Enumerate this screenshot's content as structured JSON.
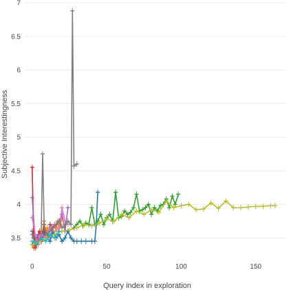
{
  "chart_data": {
    "type": "line",
    "xlabel": "Query index in exploration",
    "ylabel": "Subjective Interestingness",
    "xlim": [
      -5,
      170
    ],
    "ylim": [
      3.35,
      7.0
    ],
    "xticks": [
      "0",
      "50",
      "100",
      "150"
    ],
    "yticks": [
      "3.5",
      "4",
      "4.5",
      "5",
      "5.5",
      "6",
      "6.5",
      "7"
    ],
    "grid": true,
    "legend": "none",
    "colors": [
      "#1f77b4",
      "#ff7f0e",
      "#2ca02c",
      "#d62728",
      "#9467bd",
      "#8c564b",
      "#e377c2",
      "#7f7f7f",
      "#bcbd22",
      "#17becf"
    ],
    "series": [
      {
        "x": [
          0,
          2,
          4,
          6,
          8,
          10,
          12,
          14,
          16,
          18,
          20,
          22,
          24,
          26,
          28,
          30,
          33,
          36,
          40,
          42,
          43,
          44
        ],
        "y": [
          3.6,
          3.4,
          3.5,
          3.45,
          3.55,
          3.5,
          3.45,
          3.6,
          3.5,
          3.55,
          3.45,
          3.5,
          3.6,
          3.5,
          3.45,
          3.45,
          3.45,
          3.45,
          3.45,
          3.45,
          3.7,
          4.18
        ]
      },
      {
        "x": [
          0,
          1,
          2,
          3,
          4,
          5,
          6,
          7,
          8,
          9,
          10,
          11,
          12,
          13,
          14,
          15,
          16,
          17,
          18,
          19,
          20
        ],
        "y": [
          3.4,
          3.35,
          3.45,
          3.5,
          3.4,
          3.55,
          3.45,
          3.6,
          3.75,
          3.5,
          3.65,
          3.55,
          3.7,
          3.6,
          3.65,
          3.7,
          3.6,
          3.75,
          3.65,
          3.7,
          3.8
        ]
      },
      {
        "x": [
          28,
          30,
          32,
          34,
          36,
          38,
          40,
          42,
          44,
          46,
          48,
          50,
          52,
          54,
          56,
          58,
          60,
          62,
          64,
          66,
          68,
          70,
          72,
          74,
          76,
          78,
          80,
          82,
          84,
          86,
          88,
          90,
          92,
          94,
          96,
          98
        ],
        "y": [
          3.65,
          3.7,
          3.75,
          3.68,
          3.72,
          3.7,
          3.95,
          3.7,
          3.75,
          3.85,
          3.7,
          3.8,
          3.85,
          3.75,
          4.18,
          3.8,
          3.82,
          3.9,
          3.85,
          3.88,
          3.95,
          4.15,
          3.9,
          3.92,
          3.95,
          4.0,
          3.85,
          3.95,
          3.9,
          3.98,
          4.0,
          4.08,
          3.95,
          4.12,
          4.0,
          4.15
        ]
      },
      {
        "x": [
          0,
          1,
          2,
          3,
          4,
          5,
          6,
          7,
          8
        ],
        "y": [
          4.55,
          3.5,
          3.35,
          3.4,
          3.55,
          3.6,
          3.45,
          3.5,
          3.7
        ]
      },
      {
        "x": [
          0,
          2,
          4,
          6,
          8,
          10,
          12,
          14,
          16,
          18,
          20,
          22,
          24
        ],
        "y": [
          4.1,
          3.45,
          3.55,
          3.5,
          3.6,
          3.55,
          3.5,
          3.65,
          3.7,
          3.75,
          3.85,
          3.6,
          3.95
        ]
      },
      {
        "x": [
          0,
          2,
          4,
          6,
          8,
          10,
          12,
          14
        ],
        "y": [
          3.4,
          3.5,
          3.45,
          3.55,
          3.6,
          3.5,
          3.7,
          3.65
        ]
      },
      {
        "x": [
          0,
          3,
          6,
          9,
          12,
          15,
          18,
          20,
          22,
          24
        ],
        "y": [
          3.8,
          3.45,
          3.55,
          3.5,
          3.65,
          3.7,
          3.6,
          3.95,
          3.75,
          3.7
        ]
      },
      {
        "x": [
          0,
          2,
          4,
          6,
          7,
          8,
          10,
          12,
          14,
          16,
          18,
          20,
          22,
          24,
          26,
          27,
          28,
          30
        ],
        "y": [
          3.55,
          3.4,
          3.45,
          3.5,
          4.75,
          3.7,
          3.55,
          3.6,
          3.65,
          3.7,
          3.75,
          3.65,
          3.7,
          3.75,
          3.7,
          6.88,
          4.57,
          4.6
        ]
      },
      {
        "x": [
          0,
          5,
          10,
          15,
          20,
          25,
          30,
          35,
          40,
          45,
          50,
          55,
          60,
          65,
          70,
          75,
          80,
          85,
          90,
          95,
          100,
          105,
          110,
          115,
          120,
          125,
          130,
          135,
          140,
          145,
          150,
          155,
          160,
          163
        ],
        "y": [
          3.4,
          3.45,
          3.5,
          3.55,
          3.6,
          3.62,
          3.65,
          3.7,
          3.68,
          3.72,
          3.78,
          3.75,
          3.85,
          3.8,
          3.9,
          3.85,
          3.92,
          3.88,
          4.05,
          3.95,
          3.98,
          4.0,
          3.92,
          3.93,
          4.02,
          3.94,
          4.05,
          3.95,
          3.95,
          3.96,
          3.97,
          3.97,
          3.98,
          3.98
        ]
      },
      {
        "x": [
          0,
          3,
          6,
          9,
          12,
          15,
          18
        ],
        "y": [
          3.45,
          3.4,
          3.5,
          3.45,
          3.55,
          3.5,
          3.6
        ]
      }
    ]
  }
}
